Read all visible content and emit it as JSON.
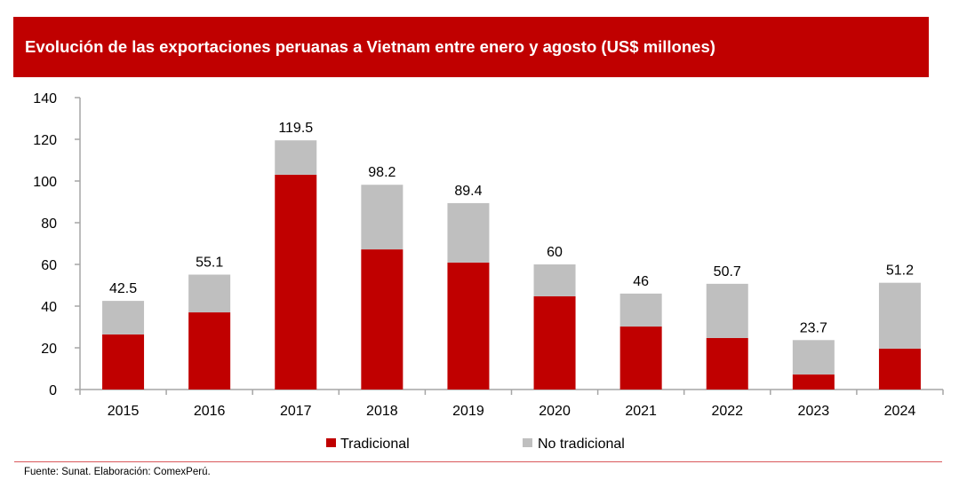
{
  "header": {
    "title": "Evolución de las exportaciones peruanas a Vietnam entre enero y agosto (US$ millones)"
  },
  "footer": {
    "source": "Fuente: Sunat. Elaboración: ComexPerú."
  },
  "colors": {
    "title_background": "#c00000",
    "tradicional": "#c00000",
    "no_tradicional": "#bfbfbf",
    "axis": "#a6a6a6",
    "separator": "#d9585b"
  },
  "chart_data": {
    "type": "bar",
    "stacked": true,
    "title": "Evolución de las exportaciones peruanas a Vietnam entre enero y agosto (US$ millones)",
    "xlabel": "",
    "ylabel": "",
    "ylim": [
      0,
      140
    ],
    "yticks": [
      0,
      20,
      40,
      60,
      80,
      100,
      120,
      140
    ],
    "grid": false,
    "legend_position": "bottom",
    "categories": [
      "2015",
      "2016",
      "2017",
      "2018",
      "2019",
      "2020",
      "2021",
      "2022",
      "2023",
      "2024"
    ],
    "series": [
      {
        "name": "Tradicional",
        "color": "#c00000",
        "values": [
          26.4,
          37.0,
          103.0,
          67.2,
          60.9,
          44.7,
          30.2,
          24.7,
          7.2,
          19.6
        ]
      },
      {
        "name": "No tradicional",
        "color": "#bfbfbf",
        "values": [
          16.1,
          18.1,
          16.5,
          31.0,
          28.5,
          15.3,
          15.8,
          26.0,
          16.5,
          31.6
        ]
      }
    ],
    "totals": [
      42.5,
      55.1,
      119.5,
      98.2,
      89.4,
      60,
      46,
      50.7,
      23.7,
      51.2
    ],
    "total_labels": [
      "42.5",
      "55.1",
      "119.5",
      "98.2",
      "89.4",
      "60",
      "46",
      "50.7",
      "23.7",
      "51.2"
    ]
  }
}
